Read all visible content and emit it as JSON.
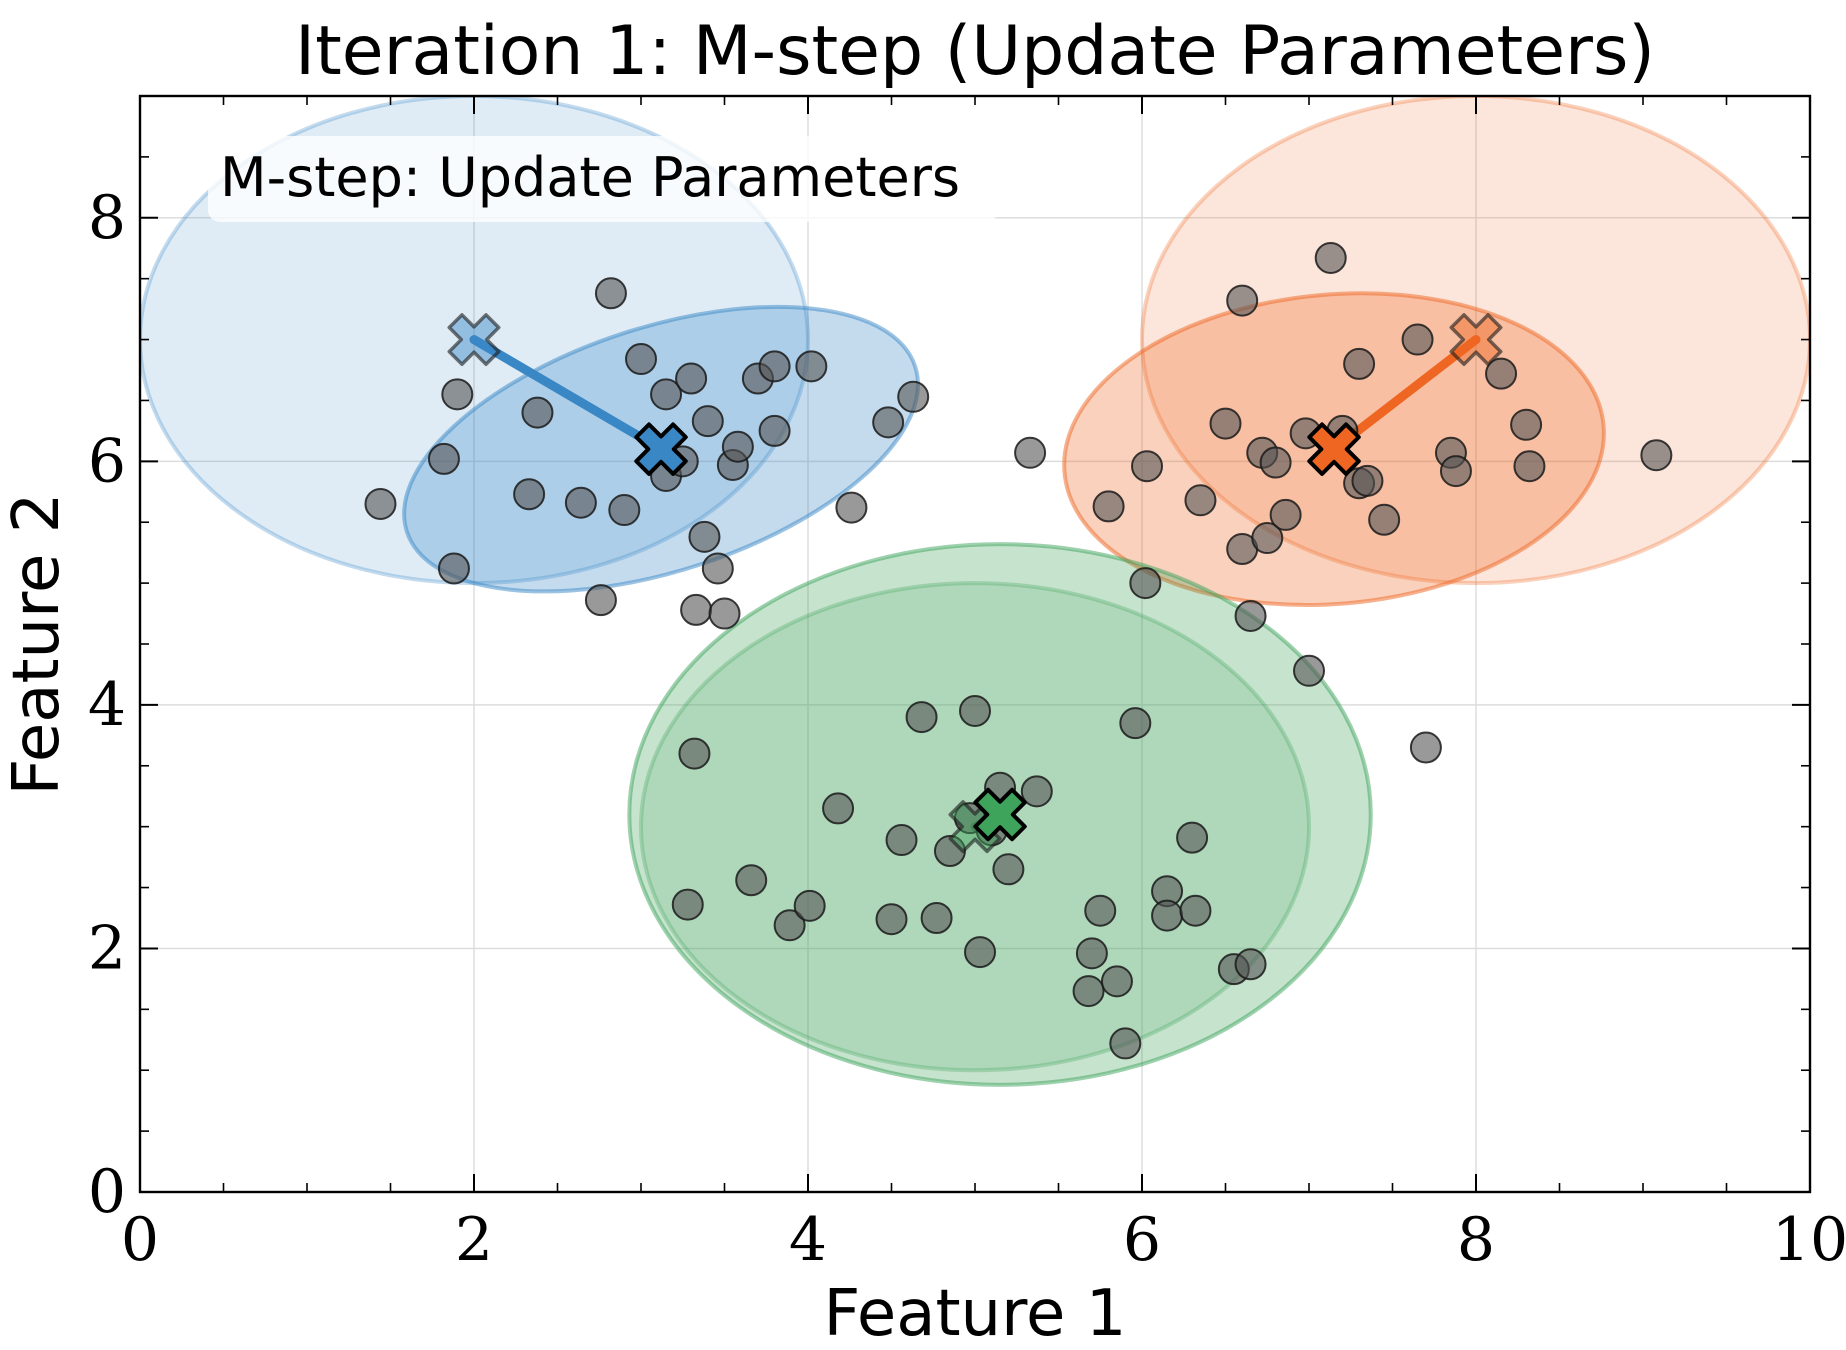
{
  "chart_data": {
    "type": "scatter",
    "title": "Iteration 1: M-step (Update Parameters)",
    "xlabel": "Feature 1",
    "ylabel": "Feature 2",
    "xlim": [
      0,
      10
    ],
    "ylim": [
      0,
      9
    ],
    "xticks": [
      0,
      2,
      4,
      6,
      8,
      10
    ],
    "yticks": [
      0,
      2,
      4,
      6,
      8
    ],
    "xtick_labels": [
      "0",
      "2",
      "4",
      "6",
      "8",
      "10"
    ],
    "ytick_labels": [
      "0",
      "2",
      "4",
      "6",
      "8"
    ],
    "grid": true,
    "annotation": "M-step: Update Parameters",
    "point_color": "#555555",
    "points": [
      [
        1.44,
        5.65
      ],
      [
        1.82,
        6.02
      ],
      [
        1.9,
        6.55
      ],
      [
        1.88,
        5.12
      ],
      [
        2.38,
        6.4
      ],
      [
        2.33,
        5.73
      ],
      [
        2.64,
        5.66
      ],
      [
        2.82,
        7.38
      ],
      [
        2.76,
        4.86
      ],
      [
        2.9,
        5.6
      ],
      [
        3.0,
        6.84
      ],
      [
        3.15,
        6.55
      ],
      [
        3.3,
        6.68
      ],
      [
        3.15,
        5.88
      ],
      [
        3.25,
        6.0
      ],
      [
        3.4,
        6.33
      ],
      [
        3.38,
        5.38
      ],
      [
        3.46,
        5.12
      ],
      [
        3.33,
        4.78
      ],
      [
        3.5,
        4.75
      ],
      [
        3.55,
        5.97
      ],
      [
        3.58,
        6.12
      ],
      [
        3.7,
        6.68
      ],
      [
        3.8,
        6.78
      ],
      [
        3.8,
        6.25
      ],
      [
        4.02,
        6.78
      ],
      [
        4.26,
        5.62
      ],
      [
        4.48,
        6.32
      ],
      [
        4.63,
        6.53
      ],
      [
        3.32,
        3.6
      ],
      [
        3.28,
        2.36
      ],
      [
        3.66,
        2.56
      ],
      [
        3.89,
        2.19
      ],
      [
        4.01,
        2.35
      ],
      [
        4.18,
        3.15
      ],
      [
        4.5,
        2.24
      ],
      [
        4.56,
        2.89
      ],
      [
        4.68,
        3.9
      ],
      [
        4.77,
        2.25
      ],
      [
        4.85,
        2.8
      ],
      [
        4.97,
        3.07
      ],
      [
        5.0,
        3.95
      ],
      [
        5.03,
        1.97
      ],
      [
        5.1,
        2.97
      ],
      [
        5.15,
        3.32
      ],
      [
        5.2,
        2.65
      ],
      [
        5.37,
        3.29
      ],
      [
        5.68,
        1.65
      ],
      [
        5.7,
        1.96
      ],
      [
        5.75,
        2.31
      ],
      [
        5.85,
        1.73
      ],
      [
        5.9,
        1.22
      ],
      [
        5.96,
        3.85
      ],
      [
        6.02,
        5.0
      ],
      [
        6.15,
        2.47
      ],
      [
        6.15,
        2.27
      ],
      [
        6.32,
        2.31
      ],
      [
        6.3,
        2.91
      ],
      [
        6.55,
        1.83
      ],
      [
        6.65,
        1.87
      ],
      [
        5.33,
        6.07
      ],
      [
        5.8,
        5.63
      ],
      [
        6.03,
        5.96
      ],
      [
        6.35,
        5.68
      ],
      [
        6.5,
        6.31
      ],
      [
        6.6,
        5.28
      ],
      [
        6.6,
        7.32
      ],
      [
        6.65,
        4.73
      ],
      [
        6.75,
        5.37
      ],
      [
        6.72,
        6.07
      ],
      [
        6.8,
        5.99
      ],
      [
        6.86,
        5.56
      ],
      [
        6.98,
        6.23
      ],
      [
        7.0,
        4.28
      ],
      [
        7.2,
        6.25
      ],
      [
        7.3,
        5.82
      ],
      [
        7.3,
        6.8
      ],
      [
        7.35,
        5.84
      ],
      [
        7.45,
        5.52
      ],
      [
        7.13,
        7.67
      ],
      [
        7.65,
        7.0
      ],
      [
        7.7,
        3.65
      ],
      [
        7.85,
        6.07
      ],
      [
        7.88,
        5.92
      ],
      [
        8.15,
        6.72
      ],
      [
        8.3,
        6.3
      ],
      [
        8.32,
        5.96
      ],
      [
        9.08,
        6.05
      ]
    ],
    "clusters": [
      {
        "color": "#3a87c6",
        "old_mean": [
          2.0,
          7.0
        ],
        "new_mean": [
          3.12,
          6.1
        ],
        "old_cov": {
          "rx": 2.0,
          "ry": 2.0,
          "angle_deg": 0
        },
        "new_cov": {
          "rx": 1.6,
          "ry": 1.0,
          "angle_deg": 18
        }
      },
      {
        "color": "#ee6622",
        "old_mean": [
          8.0,
          7.0
        ],
        "new_mean": [
          7.15,
          6.1
        ],
        "old_cov": {
          "rx": 2.0,
          "ry": 2.0,
          "angle_deg": 0
        },
        "new_cov": {
          "rx": 1.62,
          "ry": 1.27,
          "angle_deg": 5
        }
      },
      {
        "color": "#3ea35b",
        "old_mean": [
          5.0,
          3.0
        ],
        "new_mean": [
          5.15,
          3.1
        ],
        "old_cov": {
          "rx": 2.0,
          "ry": 2.0,
          "angle_deg": 0
        },
        "new_cov": {
          "rx": 2.22,
          "ry": 2.22,
          "angle_deg": 0
        }
      }
    ]
  }
}
